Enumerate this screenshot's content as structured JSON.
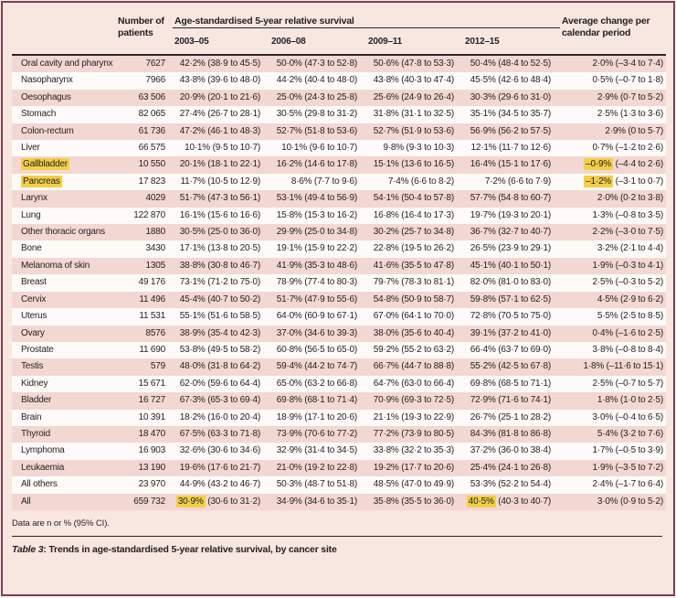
{
  "header": {
    "patients_label": "Number of patients",
    "survival_label": "Age-standardised 5-year relative survival",
    "periods": [
      "2003–05",
      "2006–08",
      "2009–11",
      "2012–15"
    ],
    "change_label": "Average change per calendar period"
  },
  "rows": [
    {
      "site": "Oral cavity and pharynx",
      "patients": "7627",
      "cells": [
        "42·2% (38·9 to 45·5)",
        "50·0% (47·3 to 52·8)",
        "50·6% (47·8 to 53·3)",
        "50·4% (48·4 to 52·5)",
        "2·0% (–3·4 to 7·4)"
      ]
    },
    {
      "site": "Nasopharynx",
      "patients": "7966",
      "cells": [
        "43·8% (39·6 to 48·0)",
        "44·2% (40·4 to 48·0)",
        "43·8% (40·3 to 47·4)",
        "45·5% (42·6 to 48·4)",
        "0·5% (–0·7 to 1·8)"
      ]
    },
    {
      "site": "Oesophagus",
      "patients": "63 506",
      "cells": [
        "20·9% (20·1 to 21·6)",
        "25·0% (24·3 to 25·8)",
        "25·6% (24·9 to 26·4)",
        "30·3% (29·6 to 31·0)",
        "2·9% (0·7 to 5·2)"
      ]
    },
    {
      "site": "Stomach",
      "patients": "82 065",
      "cells": [
        "27·4% (26·7 to 28·1)",
        "30·5% (29·8 to 31·2)",
        "31·8% (31·1 to 32·5)",
        "35·1% (34·5 to 35·7)",
        "2·5% (1·3 to 3·6)"
      ]
    },
    {
      "site": "Colon-rectum",
      "patients": "61 736",
      "cells": [
        "47·2% (46·1 to 48·3)",
        "52·7% (51·8 to 53·6)",
        "52·7% (51·9 to 53·6)",
        "56·9% (56·2 to 57·5)",
        "2·9% (0 to 5·7)"
      ]
    },
    {
      "site": "Liver",
      "patients": "66 575",
      "cells": [
        "10·1% (9·5 to 10·7)",
        "10·1% (9·6 to 10·7)",
        "9·8% (9·3 to 10·3)",
        "12·1% (11·7 to 12·6)",
        "0·7% (–1·2 to 2·6)"
      ]
    },
    {
      "site": "Gallbladder",
      "site_hl": true,
      "patients": "10 550",
      "cells": [
        "20·1% (18·1 to 22·1)",
        "16·2% (14·6 to 17·8)",
        "15·1% (13·6 to 16·5)",
        "16·4% (15·1 to 17·6)",
        {
          "hl": "–0·9%",
          "rest": " (–4·4 to 2·6)"
        }
      ]
    },
    {
      "site": "Pancreas",
      "site_hl": true,
      "patients": "17 823",
      "cells": [
        "11·7% (10·5 to 12·9)",
        "8·6% (7·7 to 9·6)",
        "7·4% (6·6 to 8·2)",
        "7·2% (6·6 to 7·9)",
        {
          "hl": "–1·2%",
          "rest": " (–3·1 to 0·7)"
        }
      ]
    },
    {
      "site": "Larynx",
      "patients": "4029",
      "cells": [
        "51·7% (47·3 to 56·1)",
        "53·1% (49·4 to 56·9)",
        "54·1% (50·4 to 57·8)",
        "57·7% (54·8 to 60·7)",
        "2·0% (0·2 to 3·8)"
      ]
    },
    {
      "site": "Lung",
      "patients": "122 870",
      "cells": [
        "16·1% (15·6 to 16·6)",
        "15·8% (15·3 to 16·2)",
        "16·8% (16·4 to 17·3)",
        "19·7% (19·3 to 20·1)",
        "1·3% (–0·8 to 3·5)"
      ]
    },
    {
      "site": "Other thoracic organs",
      "patients": "1880",
      "cells": [
        "30·5% (25·0 to 36·0)",
        "29·9% (25·0 to 34·8)",
        "30·2% (25·7 to 34·8)",
        "36·7% (32·7 to 40·7)",
        "2·2% (–3·0 to 7·5)"
      ]
    },
    {
      "site": "Bone",
      "patients": "3430",
      "cells": [
        "17·1% (13·8 to 20·5)",
        "19·1% (15·9 to 22·2)",
        "22·8% (19·5 to 26·2)",
        "26·5% (23·9 to 29·1)",
        "3·2% (2·1 to 4·4)"
      ]
    },
    {
      "site": "Melanoma of skin",
      "patients": "1305",
      "cells": [
        "38·8% (30·8 to 46·7)",
        "41·9% (35·3 to 48·6)",
        "41·6% (35·5 to 47·8)",
        "45·1% (40·1 to 50·1)",
        "1·9% (–0·3 to 4·1)"
      ]
    },
    {
      "site": "Breast",
      "patients": "49 176",
      "cells": [
        "73·1% (71·2 to 75·0)",
        "78·9% (77·4 to 80·3)",
        "79·7% (78·3 to 81·1)",
        "82·0% (81·0 to 83·0)",
        "2·5% (–0·3 to 5·2)"
      ]
    },
    {
      "site": "Cervix",
      "patients": "11 496",
      "cells": [
        "45·4% (40·7 to 50·2)",
        "51·7% (47·9 to 55·6)",
        "54·8% (50·9 to 58·7)",
        "59·8% (57·1 to 62·5)",
        "4·5% (2·9 to 6·2)"
      ]
    },
    {
      "site": "Uterus",
      "patients": "11 531",
      "cells": [
        "55·1% (51·6 to 58·5)",
        "64·0% (60·9 to 67·1)",
        "67·0% (64·1 to 70·0)",
        "72·8% (70·5 to 75·0)",
        "5·5% (2·5 to 8·5)"
      ]
    },
    {
      "site": "Ovary",
      "patients": "8576",
      "cells": [
        "38·9% (35·4 to 42·3)",
        "37·0% (34·6 to 39·3)",
        "38·0% (35·6 to 40·4)",
        "39·1% (37·2 to 41·0)",
        "0·4% (–1·6 to 2·5)"
      ]
    },
    {
      "site": "Prostate",
      "patients": "11 690",
      "cells": [
        "53·8% (49·5 to 58·2)",
        "60·8% (56·5 to 65·0)",
        "59·2% (55·2 to 63·2)",
        "66·4% (63·7 to 69·0)",
        "3·8% (–0·8 to 8·4)"
      ]
    },
    {
      "site": "Testis",
      "patients": "579",
      "cells": [
        "48·0% (31·8 to 64·2)",
        "59·4% (44·2 to 74·7)",
        "66·7% (44·7 to 88·8)",
        "55·2% (42·5 to 67·8)",
        "1·8% (–11·6 to 15·1)"
      ]
    },
    {
      "site": "Kidney",
      "patients": "15 671",
      "cells": [
        "62·0% (59·6 to 64·4)",
        "65·0% (63·2 to 66·8)",
        "64·7% (63·0 to 66·4)",
        "69·8% (68·5 to 71·1)",
        "2·5% (–0·7 to 5·7)"
      ]
    },
    {
      "site": "Bladder",
      "patients": "16 727",
      "cells": [
        "67·3% (65·3 to 69·4)",
        "69·8% (68·1 to 71·4)",
        "70·9% (69·3 to 72·5)",
        "72·9% (71·6 to 74·1)",
        "1·8% (1·0 to 2·5)"
      ]
    },
    {
      "site": "Brain",
      "patients": "10 391",
      "cells": [
        "18·2% (16·0 to 20·4)",
        "18·9% (17·1 to 20·6)",
        "21·1% (19·3 to 22·9)",
        "26·7% (25·1 to 28·2)",
        "3·0% (–0·4 to 6·5)"
      ]
    },
    {
      "site": "Thyroid",
      "patients": "18 470",
      "cells": [
        "67·5% (63·3 to 71·8)",
        "73·9% (70·6 to 77·2)",
        "77·2% (73·9 to 80·5)",
        "84·3% (81·8 to 86·8)",
        "5·4% (3·2 to 7·6)"
      ]
    },
    {
      "site": "Lymphoma",
      "patients": "16 903",
      "cells": [
        "32·6% (30·6 to 34·6)",
        "32·9% (31·4 to 34·5)",
        "33·8% (32·2 to 35·3)",
        "37·2% (36·0 to 38·4)",
        "1·7% (–0·5 to 3·9)"
      ]
    },
    {
      "site": "Leukaemia",
      "patients": "13 190",
      "cells": [
        "19·6% (17·6 to 21·7)",
        "21·0% (19·2 to 22·8)",
        "19·2% (17·7 to 20·6)",
        "25·4% (24·1 to 26·8)",
        "1·9% (–3·5 to 7·2)"
      ]
    },
    {
      "site": "All others",
      "patients": "23 970",
      "cells": [
        "44·9% (43·2 to 46·7)",
        "50·3% (48·7 to 51·8)",
        "48·5% (47·0 to 49·9)",
        "53·3% (52·2 to 54·4)",
        "2·4% (–1·7 to 6·4)"
      ]
    },
    {
      "site": "All",
      "patients": "659 732",
      "cells": [
        {
          "hl": "30·9%",
          "rest": " (30·6 to 31·2)"
        },
        "34·9% (34·6 to 35·1)",
        "35·8% (35·5 to 36·0)",
        {
          "hl": "40·5%",
          "rest": " (40·3 to 40·7)"
        },
        "3·0% (0·9 to 5·2)"
      ]
    }
  ],
  "footnote": "Data are n or % (95% CI).",
  "caption": {
    "label": "Table 3",
    "text": ": Trends in age-standardised 5-year relative survival, by cancer site"
  },
  "colors": {
    "frame": "#7a4150",
    "bg": "#f8e6e1",
    "row-pink": "#f3d7d2",
    "row-white": "#fdfbf8",
    "highlight": "#f3cf47",
    "rule": "#2b2523",
    "text": "#221e1f"
  }
}
